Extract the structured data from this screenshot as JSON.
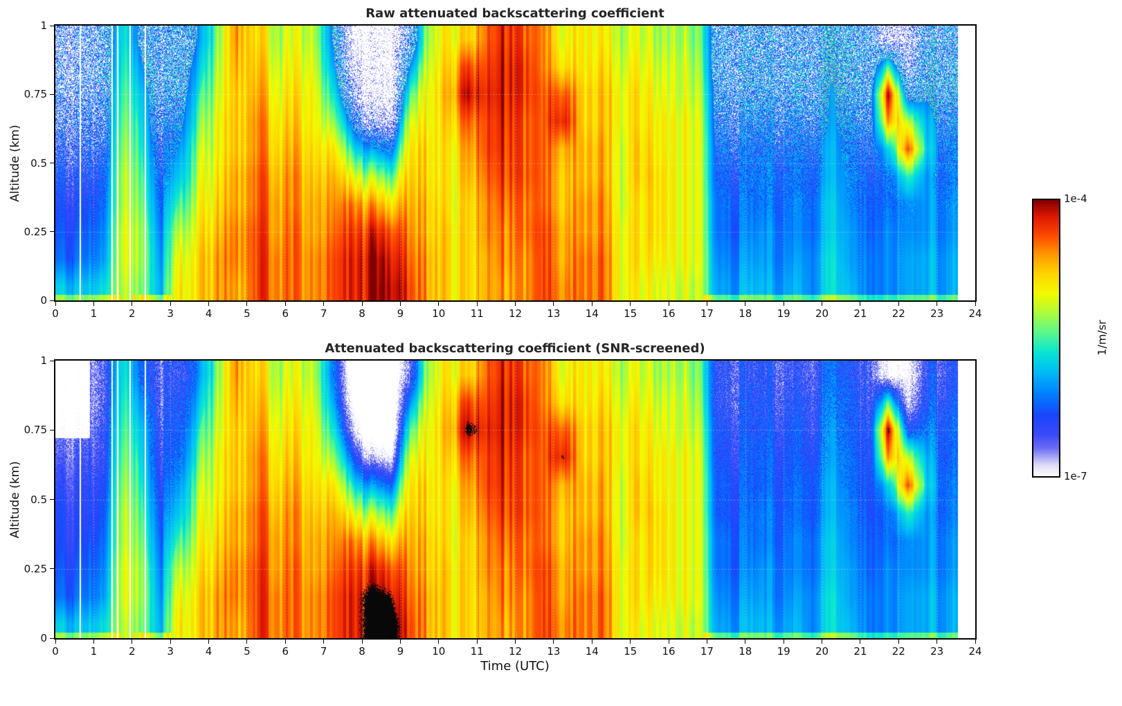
{
  "figure": {
    "background": "#ffffff"
  },
  "chart_data": {
    "type": "heatmap",
    "panels": [
      {
        "title": "Raw attenuated backscattering coefficient",
        "screened": false
      },
      {
        "title": "Attenuated backscattering coefficient (SNR-screened)",
        "screened": true
      }
    ],
    "xlabel": "Time (UTC)",
    "ylabel": "Altitude (km)",
    "xlim": [
      0,
      24
    ],
    "ylim": [
      0,
      1
    ],
    "xtick_values": [
      0,
      1,
      2,
      3,
      4,
      5,
      6,
      7,
      8,
      9,
      10,
      11,
      12,
      13,
      14,
      15,
      16,
      17,
      18,
      19,
      20,
      21,
      22,
      23,
      24
    ],
    "ytick_values": [
      0,
      0.25,
      0.5,
      0.75,
      1
    ],
    "ytick_labels": [
      "0",
      "0.25",
      "0.5",
      "0.75",
      "1"
    ],
    "colorbar": {
      "max_label": "1e-4",
      "min_label": "1e-7",
      "units": "1/m/sr",
      "log10_min": -7,
      "log10_max": -4
    },
    "data_end_utc": 23.55,
    "gap_times_utc": [
      0.65,
      1.48,
      1.62,
      1.95,
      2.35
    ],
    "saturation_log10": -4.12,
    "grid": {
      "t_start": 0.25,
      "t_step": 0.5,
      "z_start": 0.05,
      "z_step": 0.1,
      "units": "log10(attenuated backscatter, 1/m/sr)",
      "columns": [
        [
          -5.8,
          -6.2,
          -6.3,
          -6.4,
          -6.4,
          -6.5,
          -6.6,
          -6.7,
          -6.8,
          -6.8
        ],
        [
          -5.9,
          -6.2,
          -6.3,
          -6.4,
          -6.5,
          -6.5,
          -6.6,
          -6.7,
          -6.8,
          -6.8
        ],
        [
          -5.8,
          -6.1,
          -6.2,
          -6.3,
          -6.4,
          -6.5,
          -6.6,
          -6.6,
          -6.7,
          -6.7
        ],
        [
          -5.0,
          -4.9,
          -4.9,
          -5.0,
          -5.0,
          -5.1,
          -5.2,
          -5.3,
          -5.4,
          -5.5
        ],
        [
          -5.4,
          -5.3,
          -5.3,
          -5.4,
          -5.5,
          -5.6,
          -5.7,
          -5.8,
          -6.0,
          -6.2
        ],
        [
          -5.9,
          -6.0,
          -6.1,
          -6.2,
          -6.3,
          -6.4,
          -6.5,
          -6.5,
          -6.6,
          -6.6
        ],
        [
          -4.9,
          -5.0,
          -5.2,
          -5.5,
          -5.8,
          -6.0,
          -6.2,
          -6.3,
          -6.4,
          -6.5
        ],
        [
          -4.8,
          -4.8,
          -4.9,
          -5.0,
          -5.1,
          -5.2,
          -5.4,
          -5.6,
          -5.8,
          -6.0
        ],
        [
          -4.6,
          -4.6,
          -4.7,
          -4.8,
          -4.9,
          -5.0,
          -5.0,
          -5.1,
          -5.2,
          -5.3
        ],
        [
          -4.6,
          -4.5,
          -4.5,
          -4.6,
          -4.6,
          -4.7,
          -4.7,
          -4.7,
          -4.6,
          -4.5
        ],
        [
          -4.4,
          -4.4,
          -4.4,
          -4.5,
          -4.5,
          -4.6,
          -4.6,
          -4.7,
          -4.8,
          -4.9
        ],
        [
          -4.5,
          -4.5,
          -4.6,
          -4.6,
          -4.7,
          -4.8,
          -4.9,
          -5.0,
          -5.1,
          -5.2
        ],
        [
          -4.4,
          -4.4,
          -4.4,
          -4.5,
          -4.5,
          -4.6,
          -4.7,
          -4.8,
          -4.9,
          -5.0
        ],
        [
          -4.6,
          -4.6,
          -4.7,
          -4.7,
          -4.8,
          -4.9,
          -5.0,
          -5.0,
          -5.1,
          -5.2
        ],
        [
          -4.3,
          -4.3,
          -4.4,
          -4.5,
          -4.6,
          -4.8,
          -5.2,
          -5.6,
          -5.9,
          -6.1
        ],
        [
          -4.2,
          -4.2,
          -4.3,
          -4.5,
          -5.0,
          -5.6,
          -6.2,
          -6.8,
          -7.2,
          -7.4
        ],
        [
          -4.05,
          -4.05,
          -4.2,
          -4.6,
          -5.2,
          -6.0,
          -6.9,
          -7.5,
          -7.6,
          -7.6
        ],
        [
          -4.0,
          -4.1,
          -4.3,
          -4.8,
          -5.4,
          -6.2,
          -7.0,
          -7.5,
          -7.6,
          -7.6
        ],
        [
          -4.3,
          -4.4,
          -4.5,
          -4.6,
          -4.7,
          -4.8,
          -5.0,
          -5.4,
          -6.0,
          -6.6
        ],
        [
          -4.7,
          -4.7,
          -4.8,
          -4.8,
          -4.9,
          -4.9,
          -5.0,
          -5.0,
          -5.1,
          -5.2
        ],
        [
          -4.9,
          -4.9,
          -4.9,
          -5.0,
          -5.0,
          -5.0,
          -4.9,
          -4.8,
          -4.9,
          -5.0
        ],
        [
          -4.8,
          -4.8,
          -4.8,
          -4.8,
          -4.7,
          -4.6,
          -4.4,
          -4.05,
          -4.3,
          -4.8
        ],
        [
          -4.6,
          -4.6,
          -4.5,
          -4.5,
          -4.4,
          -4.3,
          -4.3,
          -4.2,
          -4.3,
          -4.4
        ],
        [
          -4.6,
          -4.5,
          -4.5,
          -4.4,
          -4.3,
          -4.25,
          -4.2,
          -4.15,
          -4.15,
          -4.2
        ],
        [
          -4.5,
          -4.5,
          -4.4,
          -4.4,
          -4.3,
          -4.3,
          -4.3,
          -4.2,
          -4.2,
          -4.3
        ],
        [
          -4.3,
          -4.3,
          -4.3,
          -4.4,
          -4.4,
          -4.4,
          -4.4,
          -4.4,
          -4.5,
          -4.5
        ],
        [
          -4.5,
          -4.6,
          -4.6,
          -4.7,
          -4.7,
          -4.6,
          -4.1,
          -4.3,
          -4.8,
          -5.0
        ],
        [
          -4.6,
          -4.6,
          -4.7,
          -4.7,
          -4.8,
          -4.8,
          -4.9,
          -4.9,
          -5.0,
          -5.0
        ],
        [
          -4.5,
          -4.5,
          -4.6,
          -4.6,
          -4.7,
          -4.7,
          -4.8,
          -4.8,
          -4.9,
          -5.0
        ],
        [
          -5.0,
          -5.0,
          -5.0,
          -5.1,
          -5.1,
          -5.1,
          -5.0,
          -5.0,
          -5.1,
          -5.2
        ],
        [
          -5.1,
          -5.0,
          -5.0,
          -5.0,
          -4.9,
          -4.9,
          -5.0,
          -5.0,
          -5.1,
          -5.2
        ],
        [
          -5.0,
          -4.9,
          -4.8,
          -4.8,
          -4.8,
          -4.9,
          -4.9,
          -5.0,
          -5.1,
          -5.2
        ],
        [
          -5.1,
          -5.0,
          -5.0,
          -5.0,
          -5.0,
          -5.0,
          -5.0,
          -5.1,
          -5.1,
          -5.2
        ],
        [
          -5.2,
          -5.1,
          -5.1,
          -5.1,
          -5.1,
          -5.1,
          -5.1,
          -5.2,
          -5.3,
          -5.4
        ],
        [
          -5.8,
          -5.9,
          -6.0,
          -6.0,
          -6.1,
          -6.1,
          -6.2,
          -6.2,
          -6.3,
          -6.3
        ],
        [
          -6.0,
          -6.1,
          -6.2,
          -6.2,
          -6.3,
          -6.3,
          -6.4,
          -6.4,
          -6.5,
          -6.5
        ],
        [
          -5.9,
          -6.0,
          -6.1,
          -6.2,
          -6.2,
          -6.3,
          -6.3,
          -6.4,
          -6.4,
          -6.5
        ],
        [
          -6.0,
          -6.1,
          -6.1,
          -6.2,
          -6.2,
          -6.3,
          -6.3,
          -6.4,
          -6.5,
          -6.5
        ],
        [
          -5.9,
          -6.0,
          -6.1,
          -6.1,
          -6.2,
          -6.2,
          -6.3,
          -6.3,
          -6.4,
          -6.5
        ],
        [
          -6.0,
          -6.0,
          -6.1,
          -6.1,
          -6.2,
          -6.2,
          -6.3,
          -6.4,
          -6.4,
          -6.5
        ],
        [
          -5.7,
          -5.7,
          -5.8,
          -5.8,
          -5.9,
          -5.9,
          -6.0,
          -6.0,
          -6.1,
          -6.2
        ],
        [
          -5.9,
          -6.0,
          -6.0,
          -6.1,
          -6.1,
          -6.2,
          -6.2,
          -6.3,
          -6.3,
          -6.4
        ],
        [
          -6.0,
          -6.0,
          -6.1,
          -6.1,
          -6.2,
          -6.2,
          -6.3,
          -6.3,
          -6.4,
          -6.4
        ],
        [
          -6.1,
          -6.1,
          -6.1,
          -6.2,
          -6.2,
          -5.8,
          -4.6,
          -4.05,
          -5.5,
          -7.2
        ],
        [
          -6.0,
          -6.0,
          -6.1,
          -6.1,
          -5.6,
          -4.4,
          -5.2,
          -6.4,
          -7.0,
          -7.2
        ],
        [
          -5.9,
          -5.9,
          -6.0,
          -6.0,
          -6.0,
          -5.8,
          -5.9,
          -6.1,
          -6.3,
          -6.4
        ],
        [
          -6.0,
          -6.0,
          -6.1,
          -6.1,
          -6.2,
          -6.2,
          -6.3,
          -6.3,
          -6.4,
          -6.5
        ],
        [
          -6.0,
          -6.0,
          -6.1,
          -6.1,
          -6.2,
          -6.2,
          -6.3,
          -6.3,
          -6.4,
          -6.5
        ]
      ]
    }
  }
}
